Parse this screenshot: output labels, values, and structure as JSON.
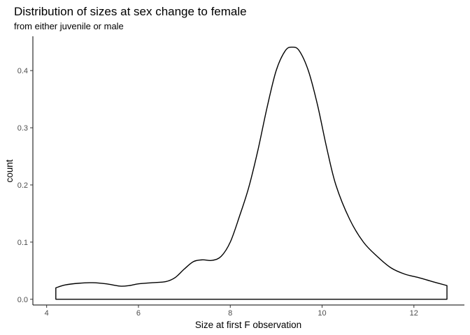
{
  "chart_data": {
    "type": "area",
    "title": "Distribution of sizes at sex change to female",
    "subtitle": "from either juvenile or male",
    "xlabel": "Size at first F observation",
    "ylabel": "count",
    "xlim": [
      3.7,
      13.1
    ],
    "ylim": [
      -0.01,
      0.46
    ],
    "x_ticks": [
      4,
      6,
      8,
      10,
      12
    ],
    "y_ticks": [
      0.0,
      0.1,
      0.2,
      0.3,
      0.4
    ],
    "y_tick_labels": [
      "0.0",
      "0.1",
      "0.2",
      "0.3",
      "0.4"
    ],
    "grid": false,
    "legend": "none",
    "series": [
      {
        "x": [
          4.2,
          4.4,
          4.7,
          5.0,
          5.3,
          5.6,
          5.8,
          6.0,
          6.3,
          6.6,
          6.8,
          7.0,
          7.2,
          7.4,
          7.6,
          7.8,
          8.0,
          8.2,
          8.4,
          8.6,
          8.8,
          9.0,
          9.2,
          9.35,
          9.5,
          9.7,
          9.9,
          10.1,
          10.3,
          10.6,
          10.9,
          11.2,
          11.5,
          11.8,
          12.1,
          12.4,
          12.72
        ],
        "y": [
          0.02,
          0.025,
          0.028,
          0.029,
          0.027,
          0.023,
          0.024,
          0.027,
          0.029,
          0.031,
          0.038,
          0.053,
          0.066,
          0.069,
          0.068,
          0.075,
          0.1,
          0.145,
          0.195,
          0.26,
          0.335,
          0.4,
          0.435,
          0.441,
          0.435,
          0.4,
          0.34,
          0.265,
          0.2,
          0.14,
          0.1,
          0.075,
          0.055,
          0.044,
          0.038,
          0.031,
          0.024
        ]
      }
    ],
    "colors": {
      "line": "#000000",
      "fill": "#ffffff",
      "axis": "#000000",
      "tick_text": "#4d4d4d"
    }
  }
}
